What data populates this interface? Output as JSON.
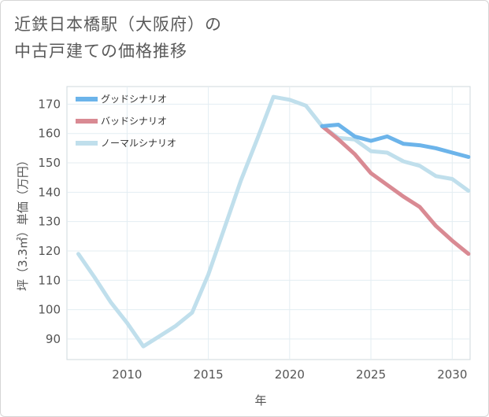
{
  "header": {
    "title_line1": "近鉄日本橋駅（大阪府）の",
    "title_line2": "中古戸建ての価格推移"
  },
  "chart_data": {
    "type": "line",
    "title": "近鉄日本橋駅（大阪府）の中古戸建ての価格推移",
    "xlabel": "年",
    "ylabel": "坪（3.3㎡）単価（万円）",
    "xlim": [
      2006.3,
      2031.1
    ],
    "ylim": [
      83,
      176
    ],
    "x_ticks": [
      2010,
      2015,
      2020,
      2025,
      2030
    ],
    "y_ticks": [
      90,
      100,
      110,
      120,
      130,
      140,
      150,
      160,
      170
    ],
    "grid": true,
    "legend_position": "top-left",
    "series": [
      {
        "name": "グッドシナリオ",
        "color": "#6cb4ea",
        "points": [
          [
            2022,
            162.5
          ],
          [
            2023,
            163
          ],
          [
            2024,
            159
          ],
          [
            2025,
            157.5
          ],
          [
            2026,
            159
          ],
          [
            2027,
            156.5
          ],
          [
            2028,
            156
          ],
          [
            2029,
            155
          ],
          [
            2030,
            153.5
          ],
          [
            2031,
            152
          ]
        ]
      },
      {
        "name": "バッドシナリオ",
        "color": "#d98a93",
        "points": [
          [
            2022,
            162.5
          ],
          [
            2023,
            158
          ],
          [
            2024,
            153
          ],
          [
            2025,
            146.5
          ],
          [
            2026,
            142.5
          ],
          [
            2027,
            138.5
          ],
          [
            2028,
            135
          ],
          [
            2029,
            128.5
          ],
          [
            2030,
            123.5
          ],
          [
            2031,
            119
          ]
        ]
      },
      {
        "name": "ノーマルシナリオ",
        "color": "#c0dfec",
        "points": [
          [
            2007,
            119
          ],
          [
            2008,
            111
          ],
          [
            2009,
            102.5
          ],
          [
            2010,
            95.5
          ],
          [
            2011,
            87.5
          ],
          [
            2012,
            91
          ],
          [
            2013,
            94.5
          ],
          [
            2014,
            99
          ],
          [
            2015,
            112
          ],
          [
            2016,
            128
          ],
          [
            2017,
            144
          ],
          [
            2018,
            158
          ],
          [
            2019,
            172.5
          ],
          [
            2020,
            171.5
          ],
          [
            2021,
            169.5
          ],
          [
            2022,
            162.5
          ],
          [
            2023,
            158.5
          ],
          [
            2024,
            158
          ],
          [
            2025,
            154
          ],
          [
            2026,
            153.5
          ],
          [
            2027,
            150.5
          ],
          [
            2028,
            149
          ],
          [
            2029,
            145.5
          ],
          [
            2030,
            144.5
          ],
          [
            2031,
            140.5
          ]
        ]
      }
    ]
  }
}
